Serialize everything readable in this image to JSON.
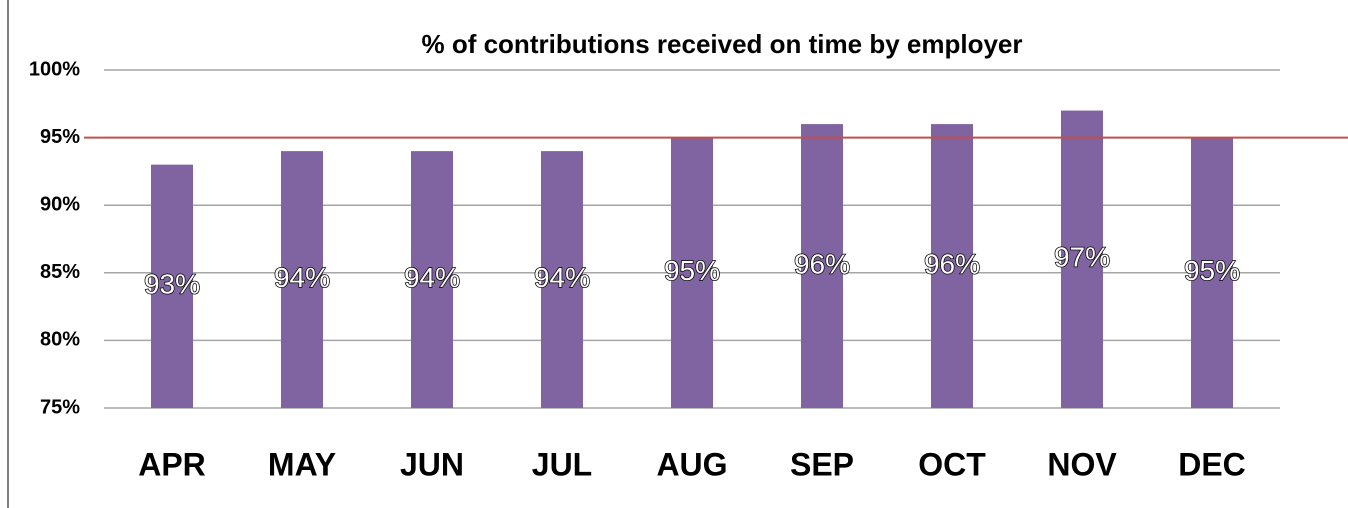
{
  "chart_data": {
    "type": "bar",
    "title": "% of contributions received on time by employer",
    "categories": [
      "APR",
      "MAY",
      "JUN",
      "JUL",
      "AUG",
      "SEP",
      "OCT",
      "NOV",
      "DEC"
    ],
    "values": [
      93,
      94,
      94,
      94,
      95,
      96,
      96,
      97,
      95
    ],
    "value_labels": [
      "93%",
      "94%",
      "94%",
      "94%",
      "95%",
      "96%",
      "96%",
      "97%",
      "95%"
    ],
    "color": "#8064a2",
    "ylim": [
      75,
      100
    ],
    "yticks": [
      {
        "value": 75,
        "label": "75%"
      },
      {
        "value": 80,
        "label": "80%"
      },
      {
        "value": 85,
        "label": "85%"
      },
      {
        "value": 90,
        "label": "90%"
      },
      {
        "value": 95,
        "label": "95%"
      },
      {
        "value": 100,
        "label": "100%"
      }
    ],
    "grid": true,
    "reference_line": {
      "value": 95,
      "color": "#c0504d"
    }
  }
}
